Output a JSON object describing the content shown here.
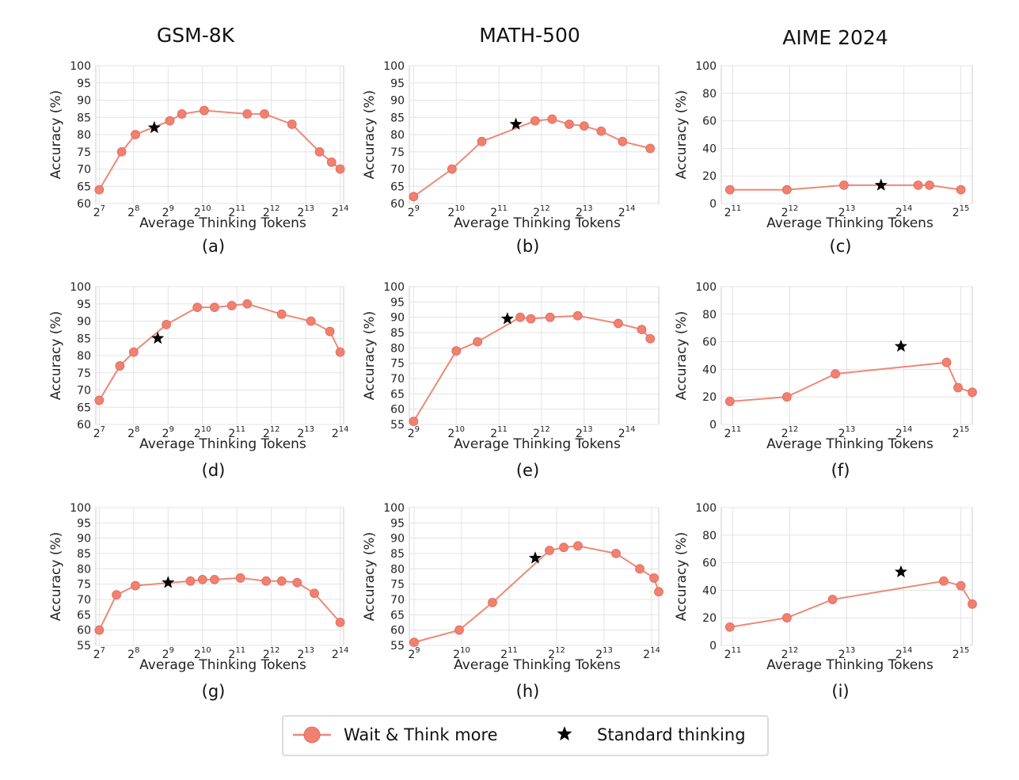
{
  "figure": {
    "column_titles": [
      "GSM-8K",
      "MATH-500",
      "AIME 2024"
    ],
    "legend": {
      "series_label": "Wait & Think more",
      "marker_label": "Standard thinking"
    },
    "colors": {
      "series": "#f08070",
      "series_line": "#ee8877",
      "star": "#000000",
      "grid": "#e3e3e3",
      "axis": "#cccccc"
    }
  },
  "chart_data": [
    {
      "type": "line",
      "caption": "(a)",
      "dataset": "GSM-8K",
      "xlabel": "Average Thinking Tokens",
      "ylabel": "Accuracy (%)",
      "x_scale": "log2",
      "xlim_exp": [
        6.9,
        14.1
      ],
      "x_ticks_exp": [
        7,
        8,
        9,
        10,
        11,
        12,
        13,
        14
      ],
      "ylim": [
        60,
        100
      ],
      "y_ticks": [
        60,
        65,
        70,
        75,
        80,
        85,
        90,
        95,
        100
      ],
      "x_exp": [
        7.0,
        7.65,
        8.05,
        9.05,
        9.4,
        10.05,
        11.3,
        11.8,
        12.6,
        13.4,
        13.75,
        14.0
      ],
      "y": [
        64,
        75,
        80,
        84,
        86,
        87,
        86,
        86,
        83,
        75,
        72,
        70
      ],
      "star": {
        "x_exp": 8.6,
        "y": 82
      }
    },
    {
      "type": "line",
      "caption": "(b)",
      "dataset": "MATH-500",
      "xlabel": "Average Thinking Tokens",
      "ylabel": "Accuracy (%)",
      "x_scale": "log2",
      "xlim_exp": [
        8.9,
        14.75
      ],
      "x_ticks_exp": [
        9,
        10,
        11,
        12,
        13,
        14
      ],
      "ylim": [
        60,
        100
      ],
      "y_ticks": [
        60,
        65,
        70,
        75,
        80,
        85,
        90,
        95,
        100
      ],
      "x_exp": [
        9.0,
        9.9,
        10.6,
        11.85,
        12.25,
        12.65,
        13.0,
        13.4,
        13.9,
        14.55
      ],
      "y": [
        62,
        70,
        78,
        84,
        84.5,
        83,
        82.5,
        81,
        78,
        76
      ],
      "star": {
        "x_exp": 11.4,
        "y": 83
      }
    },
    {
      "type": "line",
      "caption": "(c)",
      "dataset": "AIME 2024",
      "xlabel": "Average Thinking Tokens",
      "ylabel": "Accuracy (%)",
      "x_scale": "log2",
      "xlim_exp": [
        10.8,
        15.2
      ],
      "x_ticks_exp": [
        11,
        12,
        13,
        14,
        15
      ],
      "ylim": [
        0,
        100
      ],
      "y_ticks": [
        0,
        20,
        40,
        60,
        80,
        100
      ],
      "x_exp": [
        10.95,
        11.95,
        12.95,
        14.25,
        14.45,
        15.0
      ],
      "y": [
        10,
        10,
        13.3,
        13.3,
        13.3,
        10
      ],
      "star": {
        "x_exp": 13.6,
        "y": 13.3
      }
    },
    {
      "type": "line",
      "caption": "(d)",
      "dataset": "GSM-8K",
      "xlabel": "Average Thinking Tokens",
      "ylabel": "Accuracy (%)",
      "x_scale": "log2",
      "xlim_exp": [
        6.9,
        14.1
      ],
      "x_ticks_exp": [
        7,
        8,
        9,
        10,
        11,
        12,
        13,
        14
      ],
      "ylim": [
        60,
        100
      ],
      "y_ticks": [
        60,
        65,
        70,
        75,
        80,
        85,
        90,
        95,
        100
      ],
      "x_exp": [
        7.0,
        7.6,
        8.0,
        8.95,
        9.85,
        10.35,
        10.85,
        11.3,
        12.3,
        13.15,
        13.7,
        14.0
      ],
      "y": [
        67,
        77,
        81,
        89,
        94,
        94,
        94.5,
        95,
        92,
        90,
        87,
        81
      ],
      "star": {
        "x_exp": 8.7,
        "y": 85
      }
    },
    {
      "type": "line",
      "caption": "(e)",
      "dataset": "MATH-500",
      "xlabel": "Average Thinking Tokens",
      "ylabel": "Accuracy (%)",
      "x_scale": "log2",
      "xlim_exp": [
        8.9,
        14.75
      ],
      "x_ticks_exp": [
        9,
        10,
        11,
        12,
        13,
        14
      ],
      "ylim": [
        55,
        100
      ],
      "y_ticks": [
        55,
        60,
        65,
        70,
        75,
        80,
        85,
        90,
        95,
        100
      ],
      "x_exp": [
        9.0,
        10.0,
        10.5,
        11.5,
        11.75,
        12.2,
        12.85,
        13.8,
        14.35,
        14.55
      ],
      "y": [
        56,
        79,
        82,
        90,
        89.5,
        90,
        90.5,
        88,
        86,
        83
      ],
      "star": {
        "x_exp": 11.2,
        "y": 89.5
      }
    },
    {
      "type": "line",
      "caption": "(f)",
      "dataset": "AIME 2024",
      "xlabel": "Average Thinking Tokens",
      "ylabel": "Accuracy (%)",
      "x_scale": "log2",
      "xlim_exp": [
        10.8,
        15.2
      ],
      "x_ticks_exp": [
        11,
        12,
        13,
        14,
        15
      ],
      "ylim": [
        0,
        100
      ],
      "y_ticks": [
        0,
        20,
        40,
        60,
        80,
        100
      ],
      "x_exp": [
        10.95,
        11.95,
        12.8,
        14.75,
        14.95,
        15.3
      ],
      "y": [
        16.7,
        20,
        36.7,
        45,
        26.7,
        23.3
      ],
      "star": {
        "x_exp": 13.95,
        "y": 56.7
      }
    },
    {
      "type": "line",
      "caption": "(g)",
      "dataset": "GSM-8K",
      "xlabel": "Average Thinking Tokens",
      "ylabel": "Accuracy (%)",
      "x_scale": "log2",
      "xlim_exp": [
        6.9,
        14.1
      ],
      "x_ticks_exp": [
        7,
        8,
        9,
        10,
        11,
        12,
        13,
        14
      ],
      "ylim": [
        55,
        100
      ],
      "y_ticks": [
        55,
        60,
        65,
        70,
        75,
        80,
        85,
        90,
        95,
        100
      ],
      "x_exp": [
        7.0,
        7.5,
        8.05,
        9.65,
        10.0,
        10.35,
        11.1,
        11.85,
        12.3,
        12.75,
        13.25,
        14.0
      ],
      "y": [
        60,
        71.5,
        74.5,
        76,
        76.5,
        76.5,
        77,
        76,
        76,
        75.5,
        72,
        62.5
      ],
      "star": {
        "x_exp": 9.0,
        "y": 75.5
      }
    },
    {
      "type": "line",
      "caption": "(h)",
      "dataset": "MATH-500",
      "xlabel": "Average Thinking Tokens",
      "ylabel": "Accuracy (%)",
      "x_scale": "log2",
      "xlim_exp": [
        8.9,
        14.15
      ],
      "x_ticks_exp": [
        9,
        10,
        11,
        12,
        13,
        14
      ],
      "ylim": [
        55,
        100
      ],
      "y_ticks": [
        55,
        60,
        65,
        70,
        75,
        80,
        85,
        90,
        95,
        100
      ],
      "x_exp": [
        9.0,
        9.95,
        10.65,
        11.85,
        12.15,
        12.45,
        13.25,
        13.75,
        14.05,
        14.15
      ],
      "y": [
        56,
        60,
        69,
        86,
        87,
        87.5,
        85,
        80,
        77,
        72.5
      ],
      "star": {
        "x_exp": 11.55,
        "y": 83.5
      }
    },
    {
      "type": "line",
      "caption": "(i)",
      "dataset": "AIME 2024",
      "xlabel": "Average Thinking Tokens",
      "ylabel": "Accuracy (%)",
      "x_scale": "log2",
      "xlim_exp": [
        10.8,
        15.2
      ],
      "x_ticks_exp": [
        11,
        12,
        13,
        14,
        15
      ],
      "ylim": [
        0,
        100
      ],
      "y_ticks": [
        0,
        20,
        40,
        60,
        80,
        100
      ],
      "x_exp": [
        10.95,
        11.95,
        12.75,
        14.7,
        15.0,
        15.35
      ],
      "y": [
        13.3,
        20,
        33.3,
        46.7,
        43.3,
        30
      ],
      "star": {
        "x_exp": 13.95,
        "y": 53.3
      }
    }
  ]
}
